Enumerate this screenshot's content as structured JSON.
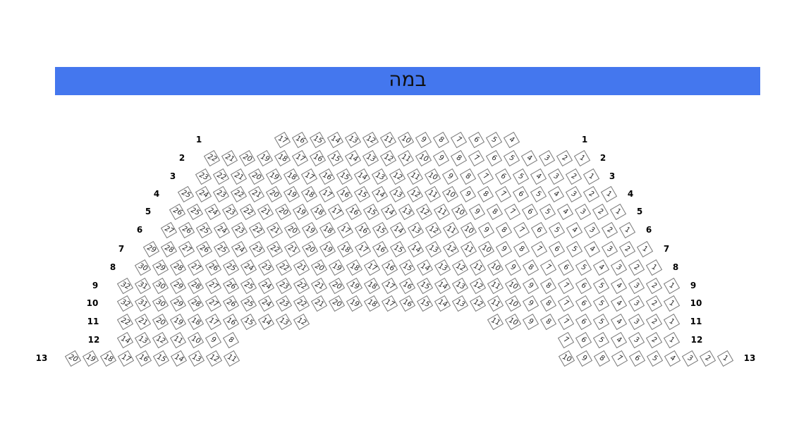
{
  "stage": {
    "label": "במה",
    "color": "#4477ee"
  },
  "rows": [
    {
      "label": "1",
      "blocks": [
        [
          17,
          4
        ]
      ]
    },
    {
      "label": "2",
      "blocks": [
        [
          22,
          1
        ]
      ]
    },
    {
      "label": "3",
      "blocks": [
        [
          23,
          1
        ]
      ]
    },
    {
      "label": "4",
      "blocks": [
        [
          25,
          1
        ]
      ]
    },
    {
      "label": "5",
      "blocks": [
        [
          26,
          1
        ]
      ]
    },
    {
      "label": "6",
      "blocks": [
        [
          27,
          1
        ]
      ]
    },
    {
      "label": "7",
      "blocks": [
        [
          29,
          1
        ]
      ]
    },
    {
      "label": "8",
      "blocks": [
        [
          30,
          1
        ]
      ]
    },
    {
      "label": "9",
      "blocks": [
        [
          32,
          1
        ]
      ]
    },
    {
      "label": "10",
      "blocks": [
        [
          32,
          1
        ]
      ]
    },
    {
      "label": "11",
      "blocks": [
        [
          22,
          12
        ],
        [
          11,
          1
        ]
      ]
    },
    {
      "label": "12",
      "blocks": [
        [
          14,
          8
        ],
        [
          7,
          1
        ]
      ]
    },
    {
      "label": "13",
      "blocks": [
        [
          20,
          11
        ],
        [
          10,
          1
        ]
      ]
    }
  ]
}
